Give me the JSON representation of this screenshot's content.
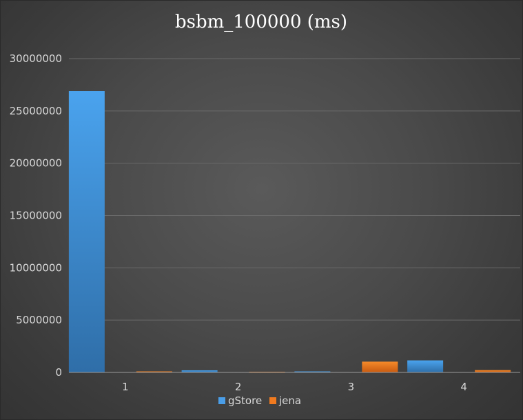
{
  "chart_data": {
    "type": "bar",
    "title": "bsbm_100000 (ms)",
    "xlabel": "",
    "ylabel": "",
    "categories": [
      "1",
      "2",
      "3",
      "4"
    ],
    "series": [
      {
        "name": "gStore",
        "values": [
          26900000,
          200000,
          0,
          1150000
        ]
      },
      {
        "name": "jena",
        "values": [
          0,
          60000,
          1030000,
          220000
        ]
      }
    ],
    "ylim": [
      0,
      30000000
    ],
    "yticks": [
      0,
      5000000,
      10000000,
      15000000,
      20000000,
      25000000,
      30000000
    ],
    "ytick_labels": [
      "0",
      "5000000",
      "10000000",
      "15000000",
      "20000000",
      "25000000",
      "30000000"
    ],
    "grid": true,
    "legend_position": "bottom",
    "colors": {
      "gStore": "#4a9ee8",
      "jena": "#f07a1f",
      "grid": "#6a6a6a",
      "axis": "#9a9a9a"
    }
  }
}
